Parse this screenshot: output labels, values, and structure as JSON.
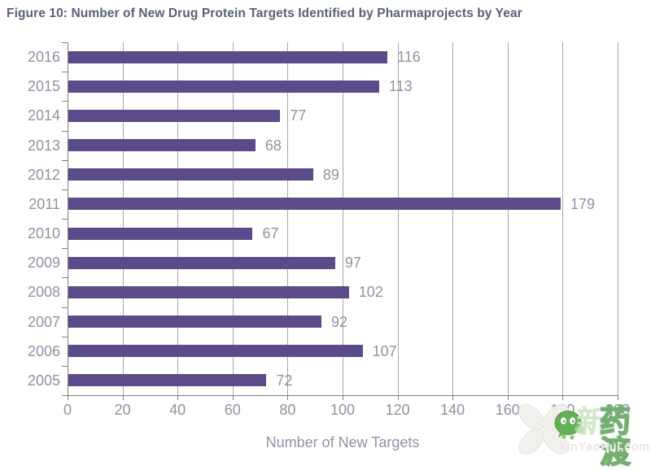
{
  "figure": {
    "title": "Figure 10: Number of New Drug Protein Targets Identified by Pharmaprojects by Year"
  },
  "chart_data": {
    "type": "bar",
    "orientation": "horizontal",
    "title": "Figure 10: Number of New Drug Protein Targets Identified by Pharmaprojects by Year",
    "categories": [
      "2016",
      "2015",
      "2014",
      "2013",
      "2012",
      "2011",
      "2010",
      "2009",
      "2008",
      "2007",
      "2006",
      "2005"
    ],
    "values": [
      116,
      113,
      77,
      68,
      89,
      179,
      67,
      97,
      102,
      92,
      107,
      72
    ],
    "xlabel": "Number of New Targets",
    "ylabel": "",
    "xticks": [
      0,
      20,
      40,
      60,
      80,
      100,
      120,
      140,
      160,
      180,
      200
    ],
    "xlim": [
      0,
      200
    ],
    "grid": true,
    "legend": "none",
    "bar_color": "#5b4b8a",
    "text_color": "#8d93a1",
    "title_color": "#596078"
  },
  "watermark": {
    "brand_prefix": "新",
    "brand": "药渡",
    "site": "XinYaoHui.com",
    "icon": "wechat-smiley-icon",
    "accent_color": "#74ae70"
  }
}
